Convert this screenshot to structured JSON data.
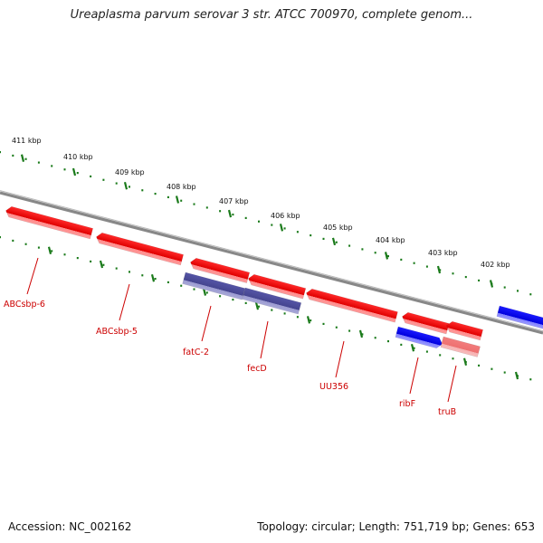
{
  "title": "Ureaplasma parvum serovar 3 str. ATCC 700970, complete genom...",
  "footer": {
    "accession": "Accession: NC_002162",
    "summary": "Topology: circular; Length: 751,719 bp; Genes: 653"
  },
  "colors": {
    "forward_gene": "#ff0000",
    "reverse_gene": "#0000ee",
    "selected_gene": "#4b4b99",
    "faded_gene": "#f08080",
    "backbone": "#888888",
    "tick": "#1a7a1a",
    "label": "#cc0000"
  },
  "scale_labels": [
    "411 kbp",
    "410 kbp",
    "409 kbp",
    "408 kbp",
    "407 kbp",
    "406 kbp",
    "405 kbp",
    "404 kbp",
    "403 kbp",
    "402 kbp"
  ],
  "genes": [
    {
      "label": "ABCsbp-6",
      "style": "forward"
    },
    {
      "label": "ABCsbp-5",
      "style": "forward"
    },
    {
      "label": "",
      "style": "forward"
    },
    {
      "label": "",
      "style": "forward"
    },
    {
      "label": "UU356",
      "style": "forward"
    },
    {
      "label": "",
      "style": "forward"
    },
    {
      "label": "",
      "style": "forward"
    },
    {
      "label": "fatC-2",
      "style": "selected"
    },
    {
      "label": "fecD",
      "style": "selected"
    },
    {
      "label": "ribF",
      "style": "reverse"
    },
    {
      "label": "truB",
      "style": "faded"
    },
    {
      "label": "",
      "style": "reverse"
    }
  ]
}
